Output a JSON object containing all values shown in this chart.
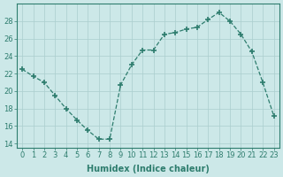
{
  "x": [
    0,
    1,
    2,
    3,
    4,
    5,
    6,
    7,
    8,
    9,
    10,
    11,
    12,
    13,
    14,
    15,
    16,
    17,
    18,
    19,
    20,
    21,
    22,
    23
  ],
  "y": [
    22.5,
    21.7,
    21.0,
    19.5,
    18.0,
    16.7,
    15.5,
    14.5,
    14.5,
    20.7,
    23.0,
    24.7,
    24.7,
    26.5,
    26.7,
    27.1,
    27.3,
    28.2,
    29.0,
    28.0,
    26.5,
    24.5,
    21.0,
    17.2
  ],
  "xlabel": "Humidex (Indice chaleur)",
  "ylabel": "",
  "xlim": [
    -0.5,
    23.5
  ],
  "ylim": [
    13.5,
    30.0
  ],
  "yticks": [
    14,
    16,
    18,
    20,
    22,
    24,
    26,
    28
  ],
  "xticks": [
    0,
    1,
    2,
    3,
    4,
    5,
    6,
    7,
    8,
    9,
    10,
    11,
    12,
    13,
    14,
    15,
    16,
    17,
    18,
    19,
    20,
    21,
    22,
    23
  ],
  "line_color": "#2e7d6e",
  "marker": "+",
  "marker_size": 4,
  "bg_color": "#cce8e8",
  "grid_color": "#aacece",
  "label_fontsize": 7.0,
  "tick_fontsize": 6.0
}
